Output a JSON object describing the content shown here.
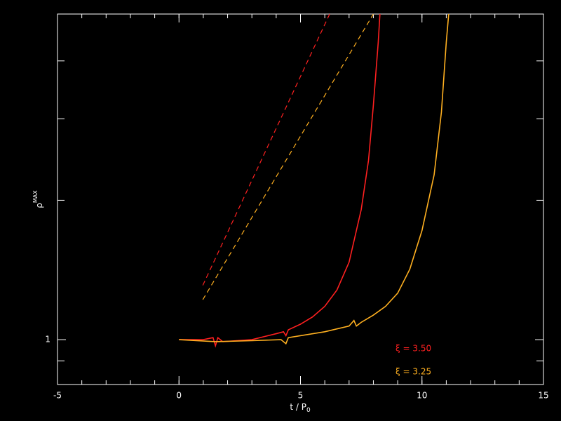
{
  "chart_data": {
    "type": "line",
    "xlabel": "t / P",
    "xlabel_subscript": "0",
    "ylabel": "ρ",
    "ylabel_superscript": "MAX",
    "xlim": [
      -5,
      15
    ],
    "xticks": [
      -5,
      0,
      5,
      10,
      15
    ],
    "x_minor_step": 1,
    "ylim": [
      0.8,
      5.05
    ],
    "log_y": true,
    "yticks": [
      1
    ],
    "y_unlabeled_ticks": [
      0.9,
      2,
      3,
      4
    ],
    "legend": "lower right",
    "series": [
      {
        "name": "ξ = 3.50",
        "color": "#ff2020",
        "dashed": false,
        "x": [
          0,
          1,
          1.4,
          1.5,
          1.6,
          1.8,
          3,
          4,
          4.3,
          4.4,
          4.5,
          5,
          5.5,
          6,
          6.5,
          7,
          7.5,
          7.8,
          8,
          8.2,
          8.27
        ],
        "values": [
          1.0,
          1.0,
          1.01,
          0.97,
          1.01,
          0.99,
          1.0,
          1.03,
          1.04,
          1.02,
          1.05,
          1.08,
          1.12,
          1.18,
          1.28,
          1.47,
          1.91,
          2.44,
          3.21,
          4.39,
          5.05
        ]
      },
      {
        "name": "ξ = 3.25",
        "color": "#ffb020",
        "dashed": false,
        "x": [
          0,
          1.5,
          3,
          4.2,
          4.4,
          4.5,
          6,
          7,
          7.2,
          7.3,
          7.5,
          8,
          8.5,
          9,
          9.5,
          10,
          10.5,
          10.8,
          11,
          11.1
        ],
        "values": [
          1.0,
          0.99,
          0.995,
          1.0,
          0.98,
          1.01,
          1.04,
          1.07,
          1.1,
          1.07,
          1.09,
          1.13,
          1.18,
          1.26,
          1.42,
          1.72,
          2.27,
          3.1,
          4.39,
          5.05
        ]
      },
      {
        "color": "#ff2020",
        "dashed": true,
        "x": [
          0.98,
          6.2
        ],
        "values": [
          1.31,
          5.05
        ]
      },
      {
        "color": "#ffb020",
        "dashed": true,
        "x": [
          0.98,
          8.0
        ],
        "values": [
          1.22,
          5.05
        ]
      }
    ]
  }
}
